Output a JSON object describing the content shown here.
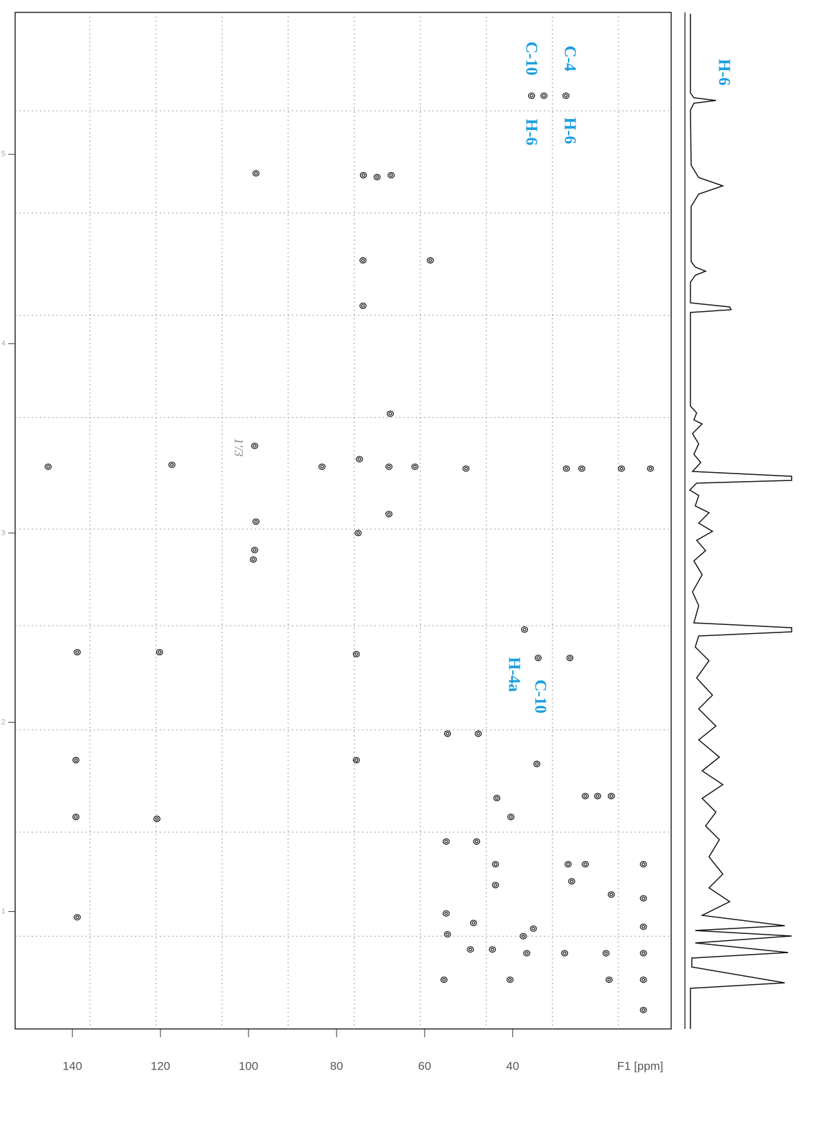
{
  "chart_data": {
    "type": "scatter",
    "x_label": "F1 [ppm]",
    "xlim": [
      153,
      4
    ],
    "xticks": [
      140,
      120,
      100,
      80,
      60,
      40
    ],
    "ylim": [
      5.75,
      0.38
    ],
    "yticks": [
      5,
      4,
      3,
      2,
      1
    ],
    "grid": true,
    "xgrid": [
      136,
      121,
      106,
      91,
      76,
      61,
      46,
      31,
      16
    ],
    "ygrid": [
      5.23,
      4.69,
      4.15,
      3.61,
      3.02,
      2.51,
      1.96,
      1.42,
      0.87
    ],
    "color": "#222222",
    "annotation_color": "#1a9ee0",
    "annotations": [
      "C-4",
      "H-6",
      "C-10",
      "H-6",
      "H-4a",
      "C-10",
      "H-6",
      "1'/3"
    ],
    "x": [
      27.9,
      32.9,
      35.7,
      98.3,
      73.9,
      70.8,
      67.6,
      74.0,
      58.7,
      74.0,
      67.8,
      98.6,
      145.5,
      117.4,
      83.3,
      74.8,
      68.1,
      62.2,
      50.6,
      27.8,
      24.3,
      15.3,
      8.7,
      98.3,
      68.1,
      75.1,
      98.6,
      98.9,
      37.3,
      138.9,
      120.2,
      75.5,
      34.2,
      27.0,
      54.8,
      47.8,
      139.2,
      75.5,
      34.5,
      43.6,
      23.5,
      20.7,
      17.6,
      40.4,
      139.2,
      120.8,
      55.1,
      48.2,
      43.9,
      27.4,
      23.5,
      10.3,
      43.9,
      26.6,
      17.6,
      10.3,
      138.9,
      55.1,
      48.9,
      35.3,
      10.3,
      54.8,
      44.6,
      36.8,
      28.2,
      18.8,
      10.3,
      55.6,
      40.6,
      18.1,
      10.3,
      10.3,
      49.6,
      37.6
    ],
    "y": [
      5.31,
      5.31,
      5.31,
      4.9,
      4.89,
      4.88,
      4.89,
      4.44,
      4.44,
      4.2,
      3.63,
      3.46,
      3.35,
      3.36,
      3.35,
      3.39,
      3.35,
      3.35,
      3.34,
      3.34,
      3.34,
      3.34,
      3.34,
      3.06,
      3.1,
      3.0,
      2.91,
      2.86,
      2.49,
      2.37,
      2.37,
      2.36,
      2.34,
      2.34,
      1.94,
      1.94,
      1.8,
      1.8,
      1.78,
      1.6,
      1.61,
      1.61,
      1.61,
      1.5,
      1.5,
      1.49,
      1.37,
      1.37,
      1.25,
      1.25,
      1.25,
      1.25,
      1.14,
      1.16,
      1.09,
      1.07,
      0.97,
      0.99,
      0.94,
      0.91,
      0.92,
      0.88,
      0.8,
      0.78,
      0.78,
      0.78,
      0.78,
      0.64,
      0.64,
      0.64,
      0.64,
      0.48,
      0.8,
      0.87
    ]
  }
}
